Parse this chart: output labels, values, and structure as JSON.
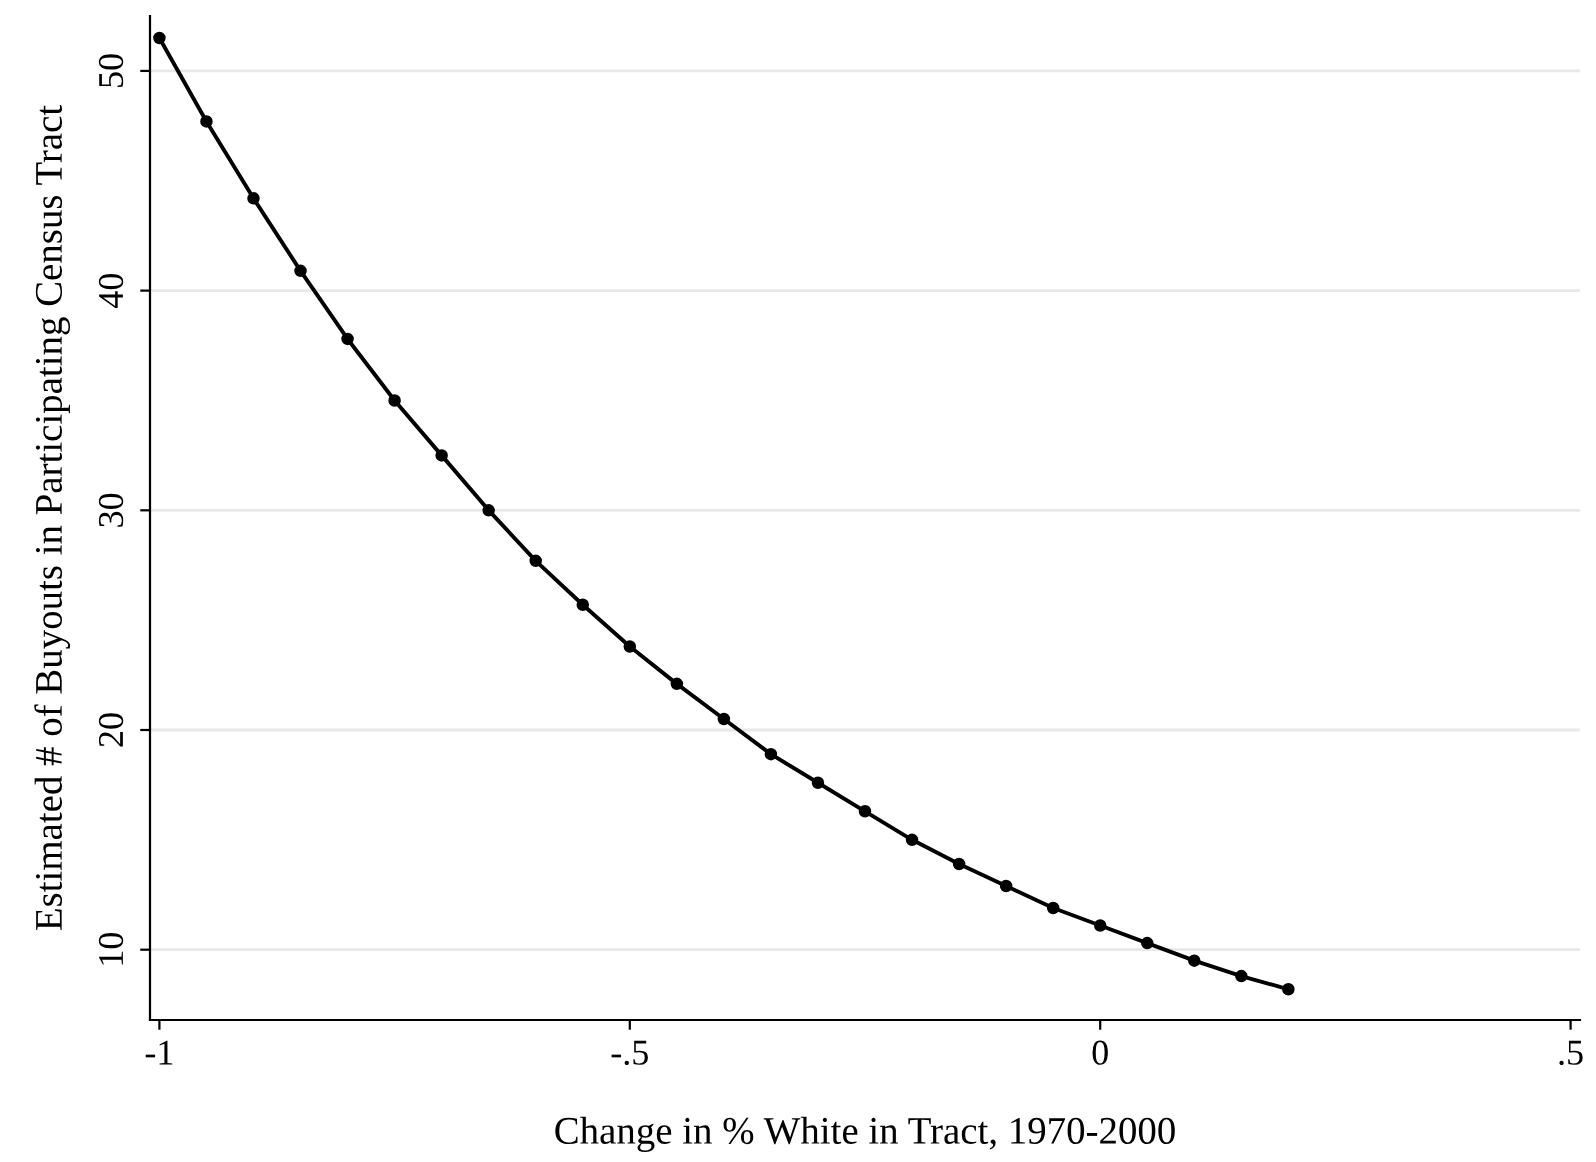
{
  "chart_data": {
    "type": "line",
    "xlabel": "Change in % White in Tract, 1970-2000",
    "ylabel": "Estimated # of Buyouts in Participating Census Tract",
    "x": [
      -1,
      -0.95,
      -0.9,
      -0.85,
      -0.8,
      -0.75,
      -0.7,
      -0.65,
      -0.6,
      -0.55,
      -0.5,
      -0.45,
      -0.4,
      -0.35,
      -0.3,
      -0.25,
      -0.2,
      -0.15,
      -0.1,
      -0.05,
      0,
      0.05,
      0.1,
      0.15,
      0.2
    ],
    "series": [
      {
        "color": "#000000",
        "values": [
          51.5,
          47.7,
          44.2,
          40.9,
          37.8,
          35.0,
          32.5,
          30.0,
          27.7,
          25.7,
          23.8,
          22.1,
          20.5,
          18.9,
          17.6,
          16.3,
          15.0,
          13.9,
          12.9,
          11.9,
          11.1,
          10.3,
          9.5,
          8.8,
          8.2
        ]
      }
    ],
    "xlim": [
      -1.01,
      0.51
    ],
    "ylim": [
      6.8,
      52.5
    ],
    "xticks": [
      {
        "value": -1,
        "label": "-1"
      },
      {
        "value": -0.5,
        "label": "-.5"
      },
      0,
      {
        "value": 0.5,
        "label": ".5"
      }
    ],
    "yticks": [
      10,
      20,
      30,
      40,
      50
    ],
    "grid": "y",
    "marker": "circle",
    "line_style": "solid"
  }
}
